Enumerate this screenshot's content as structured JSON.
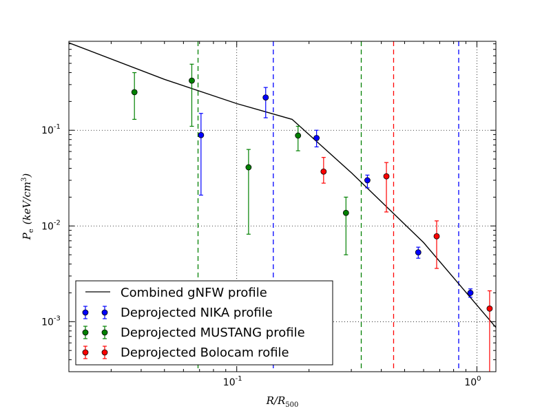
{
  "chart_data": {
    "type": "scatter",
    "title": "",
    "xlabel": "R/R",
    "xlabel_sub": "500",
    "ylabel": "P",
    "ylabel_sub": "e",
    "ylabel_unit": "(keV/cm",
    "ylabel_unit_sup": "3",
    "ylabel_unit_close": ")",
    "x_scale": "log",
    "y_scale": "log",
    "xlim": [
      0.02,
      1.2
    ],
    "ylim": [
      0.0003,
      0.85
    ],
    "x_ticks": [
      {
        "value": 0.1,
        "base": "10",
        "exp": "-1"
      },
      {
        "value": 1.0,
        "base": "10",
        "exp": "0"
      }
    ],
    "y_ticks": [
      {
        "value": 0.001,
        "base": "10",
        "exp": "-3"
      },
      {
        "value": 0.01,
        "base": "10",
        "exp": "-2"
      },
      {
        "value": 0.1,
        "base": "10",
        "exp": "-1"
      }
    ],
    "grid": "dotted",
    "legend_position": "bottom-left",
    "colors": {
      "model": "#000000",
      "nika": "#0000ff",
      "mustang": "#008000",
      "bolocam": "#ff0000"
    },
    "model": {
      "name": "Combined gNFW profile",
      "x": [
        0.02,
        0.05,
        0.1,
        0.17,
        0.3,
        0.6,
        1.2
      ],
      "y": [
        0.82,
        0.34,
        0.19,
        0.13,
        0.036,
        0.0067,
        0.00087
      ]
    },
    "vertical_lines": [
      {
        "x": 0.069,
        "color": "mustang"
      },
      {
        "x": 0.33,
        "color": "mustang"
      },
      {
        "x": 0.142,
        "color": "nika"
      },
      {
        "x": 0.84,
        "color": "nika"
      },
      {
        "x": 0.45,
        "color": "bolocam"
      }
    ],
    "series": [
      {
        "name": "Deprojected NIKA profile",
        "color": "nika",
        "points": [
          {
            "x": 0.071,
            "y": 0.089,
            "lo": 0.021,
            "hi": 0.15
          },
          {
            "x": 0.132,
            "y": 0.22,
            "lo": 0.135,
            "hi": 0.28
          },
          {
            "x": 0.215,
            "y": 0.083,
            "lo": 0.067,
            "hi": 0.1
          },
          {
            "x": 0.35,
            "y": 0.03,
            "lo": 0.025,
            "hi": 0.034
          },
          {
            "x": 0.57,
            "y": 0.0053,
            "lo": 0.0046,
            "hi": 0.006
          },
          {
            "x": 0.94,
            "y": 0.002,
            "lo": 0.0018,
            "hi": 0.0022
          }
        ]
      },
      {
        "name": "Deprojected MUSTANG profile",
        "color": "mustang",
        "points": [
          {
            "x": 0.0375,
            "y": 0.25,
            "lo": 0.13,
            "hi": 0.4
          },
          {
            "x": 0.065,
            "y": 0.33,
            "lo": 0.11,
            "hi": 0.49
          },
          {
            "x": 0.112,
            "y": 0.041,
            "lo": 0.0082,
            "hi": 0.063
          },
          {
            "x": 0.18,
            "y": 0.088,
            "lo": 0.061,
            "hi": 0.11
          },
          {
            "x": 0.285,
            "y": 0.0137,
            "lo": 0.005,
            "hi": 0.02
          }
        ]
      },
      {
        "name": "Deprojected Bolocam rofile",
        "color": "bolocam",
        "points": [
          {
            "x": 0.23,
            "y": 0.037,
            "lo": 0.028,
            "hi": 0.052
          },
          {
            "x": 0.42,
            "y": 0.033,
            "lo": 0.014,
            "hi": 0.046
          },
          {
            "x": 0.68,
            "y": 0.0078,
            "lo": 0.0036,
            "hi": 0.0113
          },
          {
            "x": 1.13,
            "y": 0.00137,
            "lo": 0.0003,
            "hi": 0.0021
          }
        ]
      }
    ]
  }
}
